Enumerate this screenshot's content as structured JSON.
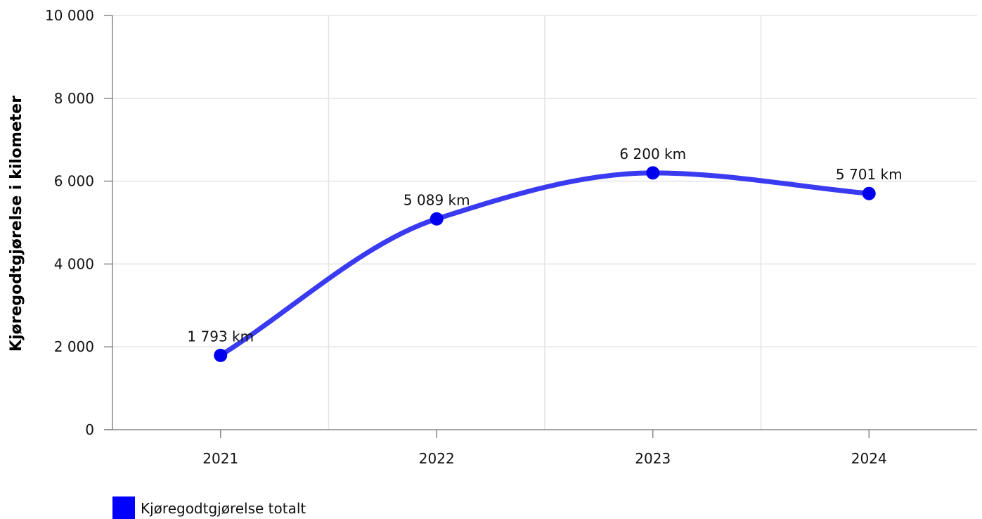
{
  "chart_data": {
    "type": "line",
    "title": "",
    "xlabel": "",
    "ylabel": "Kjøregodtgjørelse i kilometer",
    "categories": [
      "2021",
      "2022",
      "2023",
      "2024"
    ],
    "series": [
      {
        "name": "Kjøregodtgjørelse totalt",
        "values": [
          1793,
          5089,
          6200,
          5701
        ],
        "labels": [
          "1 793 km",
          "5 089 km",
          "6 200 km",
          "5 701 km"
        ],
        "color": "#3a3af0",
        "marker_color": "#0000ee"
      }
    ],
    "ylim": [
      0,
      10000
    ],
    "yticks": [
      0,
      2000,
      4000,
      6000,
      8000,
      10000
    ],
    "ytick_labels": [
      "0",
      "2 000",
      "4 000",
      "6 000",
      "8 000",
      "10 000"
    ],
    "grid": true,
    "smooth": true,
    "legend_position": "bottom-left",
    "legend_swatch_color": "#0000ff"
  }
}
